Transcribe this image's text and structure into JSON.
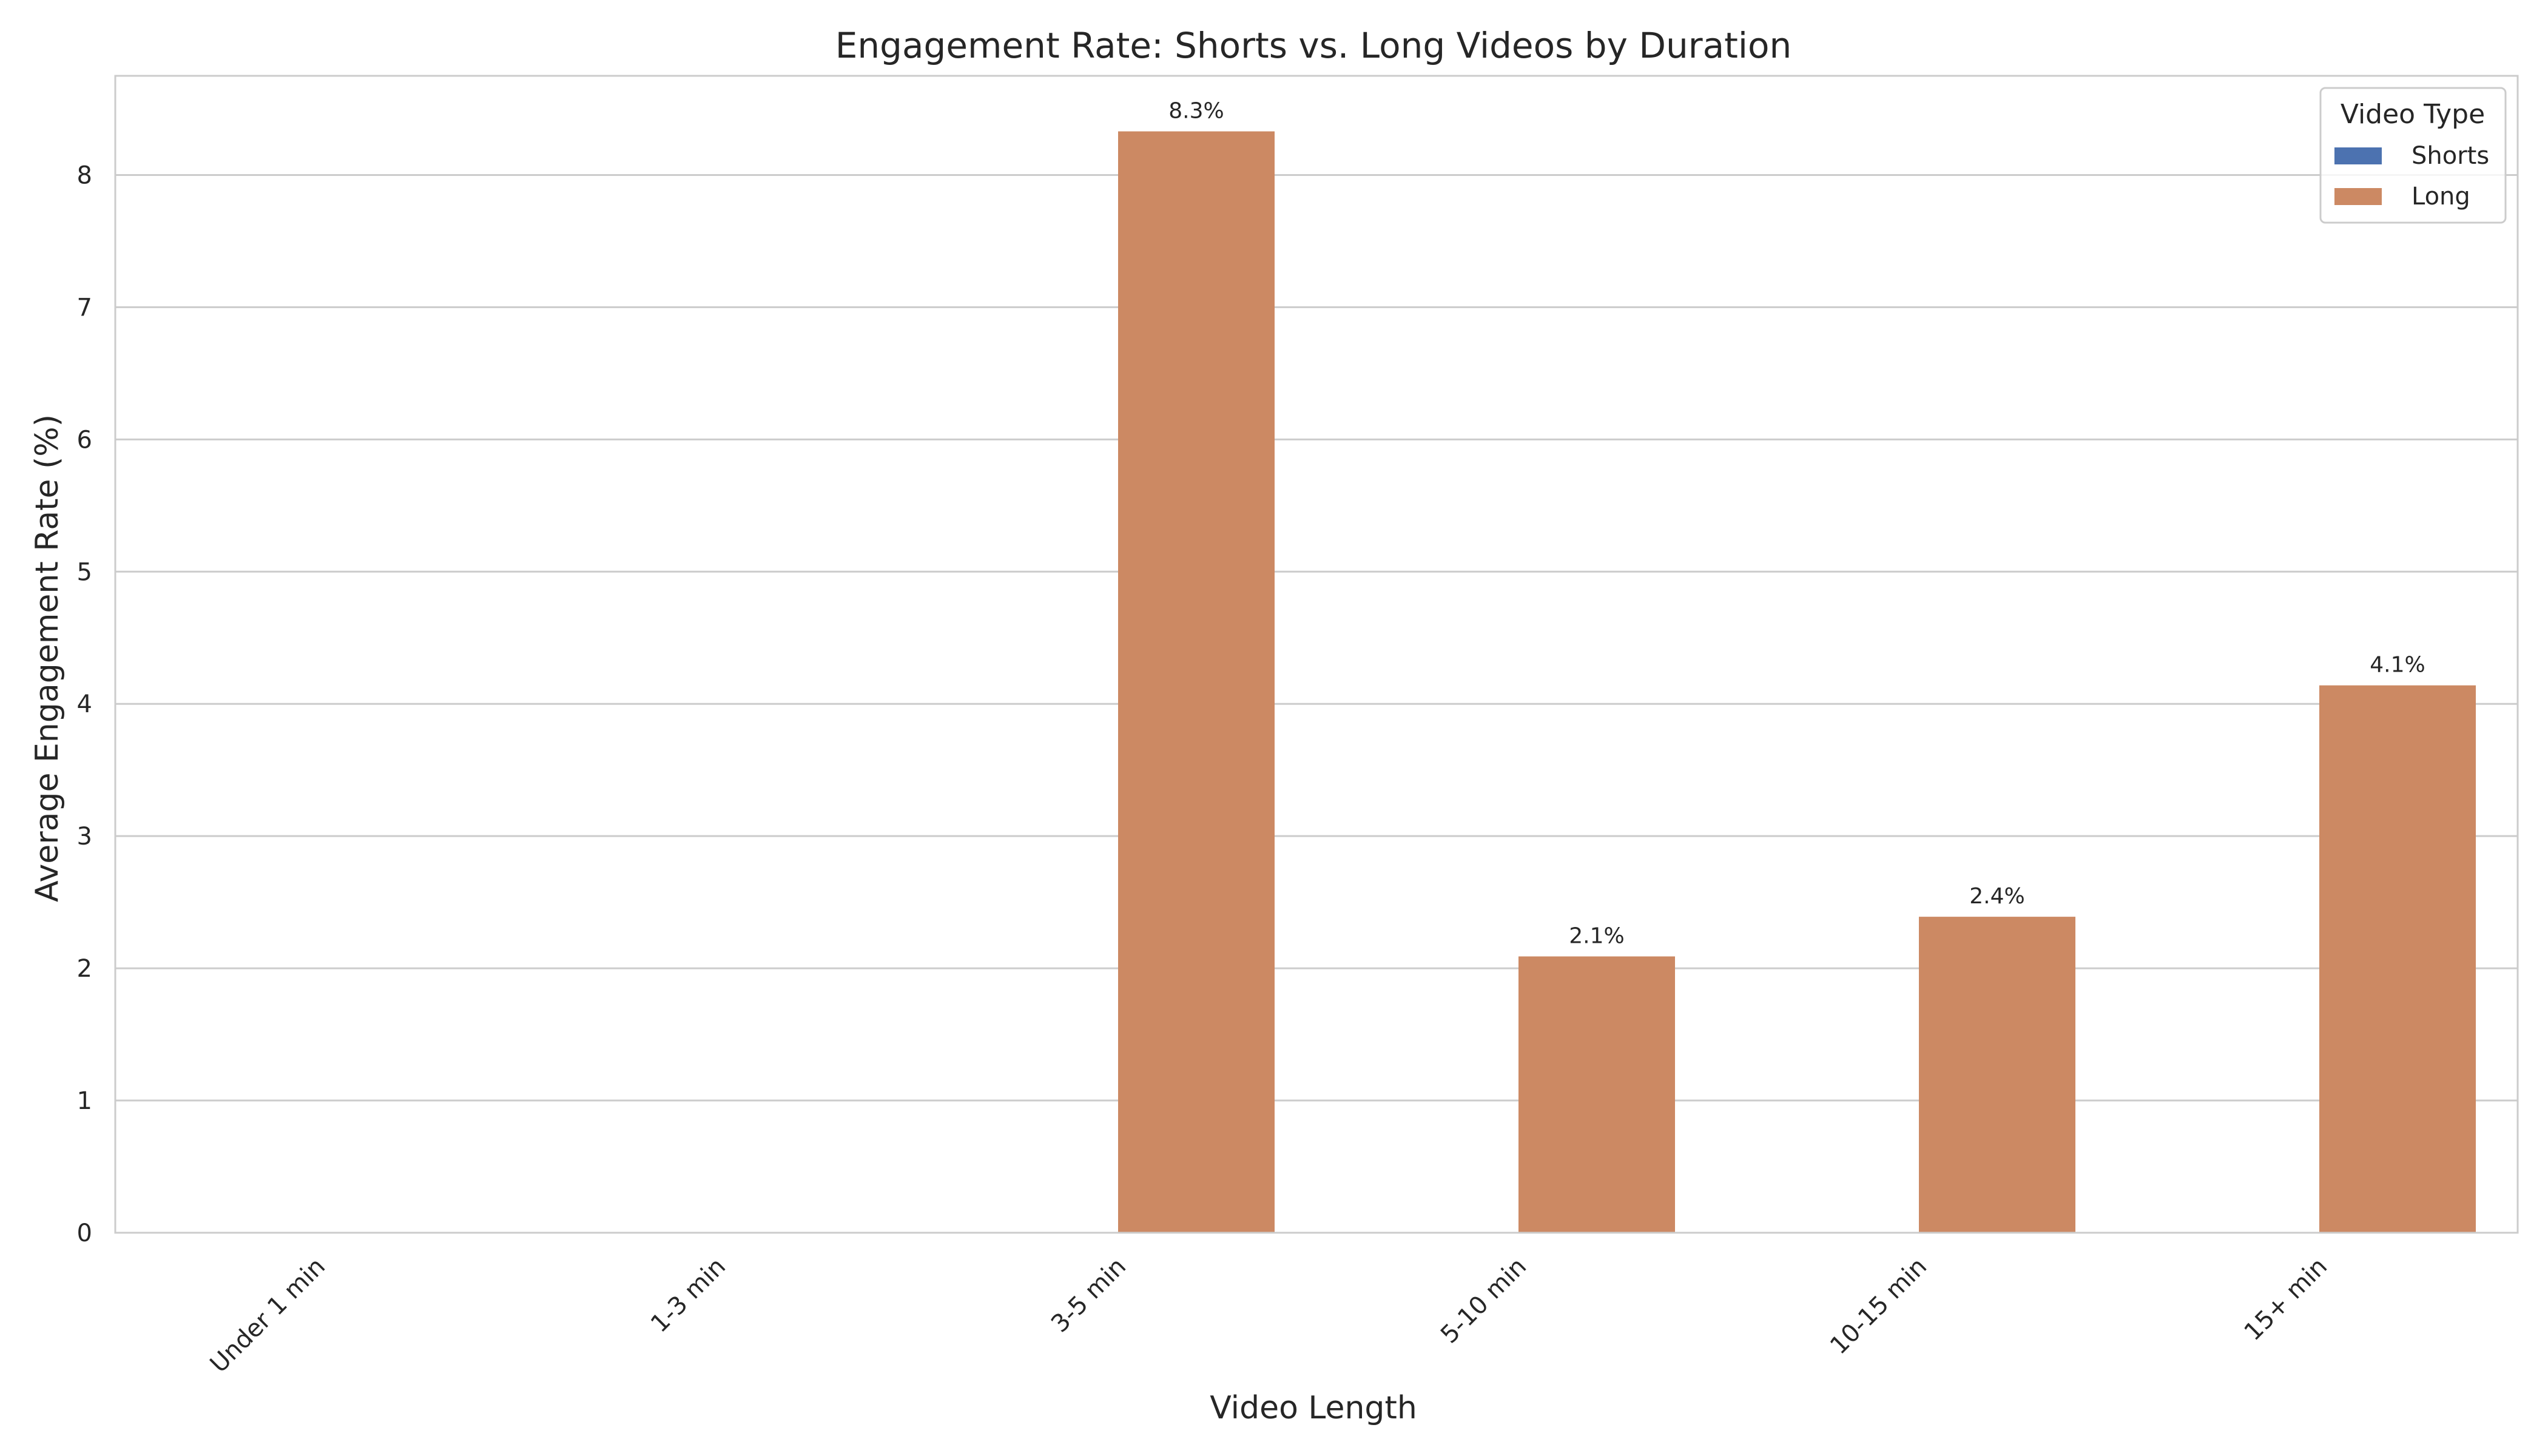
{
  "chart_data": {
    "type": "bar",
    "title": "Engagement Rate: Shorts vs. Long Videos by Duration",
    "xlabel": "Video Length",
    "ylabel": "Average Engagement Rate (%)",
    "ylim": [
      0,
      8.75
    ],
    "yticks": [
      "0",
      "1",
      "2",
      "3",
      "4",
      "5",
      "6",
      "7",
      "8"
    ],
    "categories": [
      "Under 1 min",
      "1-3 min",
      "3-5 min",
      "5-10 min",
      "10-15 min",
      "15+ min"
    ],
    "series": [
      {
        "name": "Shorts",
        "color": "#4c72b0",
        "values": [
          null,
          null,
          null,
          null,
          null,
          null
        ],
        "labels": [
          null,
          null,
          null,
          null,
          null,
          null
        ]
      },
      {
        "name": "Long",
        "color": "#cc8963",
        "values": [
          null,
          null,
          8.33,
          2.09,
          2.39,
          4.14
        ],
        "labels": [
          null,
          null,
          "8.3%",
          "2.1%",
          "2.4%",
          "4.1%"
        ]
      }
    ],
    "grid": true,
    "legend": {
      "title": "Video Type",
      "position": "top-right"
    }
  }
}
